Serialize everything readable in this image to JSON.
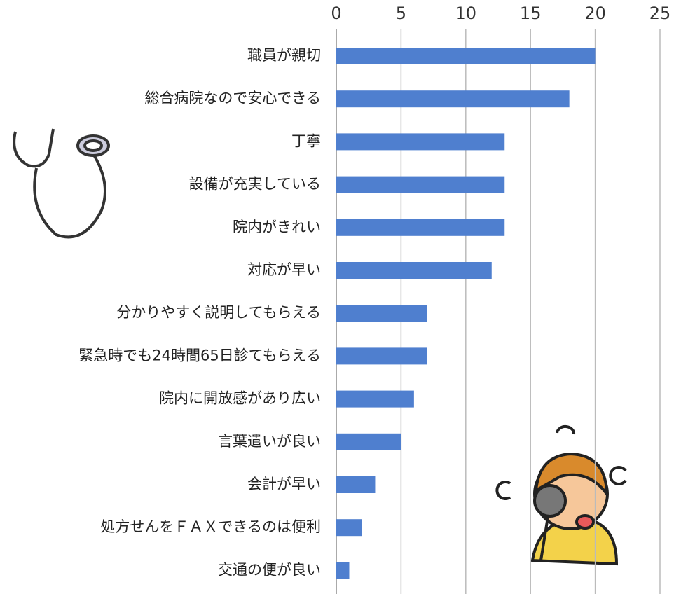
{
  "chart_data": {
    "type": "barh",
    "categories": [
      "職員が親切",
      "総合病院なので安心できる",
      "丁寧",
      "設備が充実している",
      "院内がきれい",
      "対応が早い",
      "分かりやすく説明してもらえる",
      "緊急時でも24時間65日診てもらえる",
      "院内に開放感があり広い",
      "言葉遣いが良い",
      "会計が早い",
      "処方せんをＦＡＸできるのは便利",
      "交通の便が良い"
    ],
    "values": [
      20,
      18,
      13,
      13,
      13,
      12,
      7,
      7,
      6,
      5,
      3,
      2,
      1
    ],
    "color": "#4f7fcf",
    "xlim": [
      0,
      25
    ],
    "xticks": [
      0,
      5,
      10,
      15,
      20,
      25
    ],
    "grid": true
  }
}
